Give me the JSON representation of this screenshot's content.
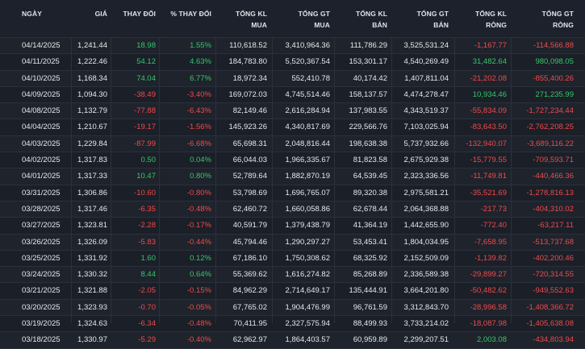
{
  "headers": {
    "date": "NGÀY",
    "price": "GIÁ",
    "change": "THAY ĐỔI",
    "pct_change": "% THAY ĐỔI",
    "buy_vol": [
      "TỔNG KL",
      "MUA"
    ],
    "buy_val": [
      "TỔNG GT",
      "MUA"
    ],
    "sell_vol": [
      "TỔNG KL",
      "BÁN"
    ],
    "sell_val": [
      "TỔNG GT",
      "BÁN"
    ],
    "net_vol": [
      "TỔNG KL",
      "RÒNG"
    ],
    "net_val": [
      "TỔNG GT",
      "RÒNG"
    ]
  },
  "colors": {
    "up": "#39c66a",
    "down": "#ef4b4b",
    "background": "#1a1f28"
  },
  "rows": [
    {
      "date": "04/14/2025",
      "price": "1,241.44",
      "change": "18.98",
      "pct": "1.55%",
      "buy_vol": "110,618.52",
      "buy_val": "3,410,964.36",
      "sell_vol": "111,786.29",
      "sell_val": "3,525,531.24",
      "net_vol": "-1,167.77",
      "net_val": "-114,566.88"
    },
    {
      "date": "04/11/2025",
      "price": "1,222.46",
      "change": "54.12",
      "pct": "4.63%",
      "buy_vol": "184,783.80",
      "buy_val": "5,520,367.54",
      "sell_vol": "153,301.17",
      "sell_val": "4,540,269.49",
      "net_vol": "31,482.64",
      "net_val": "980,098.05"
    },
    {
      "date": "04/10/2025",
      "price": "1,168.34",
      "change": "74.04",
      "pct": "6.77%",
      "buy_vol": "18,972.34",
      "buy_val": "552,410.78",
      "sell_vol": "40,174.42",
      "sell_val": "1,407,811.04",
      "net_vol": "-21,202.08",
      "net_val": "-855,400.26"
    },
    {
      "date": "04/09/2025",
      "price": "1,094.30",
      "change": "-38.49",
      "pct": "-3.40%",
      "buy_vol": "169,072.03",
      "buy_val": "4,745,514.46",
      "sell_vol": "158,137.57",
      "sell_val": "4,474,278.47",
      "net_vol": "10,934.46",
      "net_val": "271,235.99"
    },
    {
      "date": "04/08/2025",
      "price": "1,132.79",
      "change": "-77.88",
      "pct": "-6.43%",
      "buy_vol": "82,149.46",
      "buy_val": "2,616,284.94",
      "sell_vol": "137,983.55",
      "sell_val": "4,343,519.37",
      "net_vol": "-55,834.09",
      "net_val": "-1,727,234.44"
    },
    {
      "date": "04/04/2025",
      "price": "1,210.67",
      "change": "-19.17",
      "pct": "-1.56%",
      "buy_vol": "145,923.26",
      "buy_val": "4,340,817.69",
      "sell_vol": "229,566.76",
      "sell_val": "7,103,025.94",
      "net_vol": "-83,643.50",
      "net_val": "-2,762,208.25"
    },
    {
      "date": "04/03/2025",
      "price": "1,229.84",
      "change": "-87.99",
      "pct": "-6.68%",
      "buy_vol": "65,698.31",
      "buy_val": "2,048,816.44",
      "sell_vol": "198,638.38",
      "sell_val": "5,737,932.66",
      "net_vol": "-132,940.07",
      "net_val": "-3,689,116.22"
    },
    {
      "date": "04/02/2025",
      "price": "1,317.83",
      "change": "0.50",
      "pct": "0.04%",
      "buy_vol": "66,044.03",
      "buy_val": "1,966,335.67",
      "sell_vol": "81,823.58",
      "sell_val": "2,675,929.38",
      "net_vol": "-15,779.55",
      "net_val": "-709,593.71"
    },
    {
      "date": "04/01/2025",
      "price": "1,317.33",
      "change": "10.47",
      "pct": "0.80%",
      "buy_vol": "52,789.64",
      "buy_val": "1,882,870.19",
      "sell_vol": "64,539.45",
      "sell_val": "2,323,336.56",
      "net_vol": "-11,749.81",
      "net_val": "-440,466.36"
    },
    {
      "date": "03/31/2025",
      "price": "1,306.86",
      "change": "-10.60",
      "pct": "-0.80%",
      "buy_vol": "53,798.69",
      "buy_val": "1,696,765.07",
      "sell_vol": "89,320.38",
      "sell_val": "2,975,581.21",
      "net_vol": "-35,521.69",
      "net_val": "-1,278,816.13"
    },
    {
      "date": "03/28/2025",
      "price": "1,317.46",
      "change": "-6.35",
      "pct": "-0.48%",
      "buy_vol": "62,460.72",
      "buy_val": "1,660,058.86",
      "sell_vol": "62,678.44",
      "sell_val": "2,064,368.88",
      "net_vol": "-217.73",
      "net_val": "-404,310.02"
    },
    {
      "date": "03/27/2025",
      "price": "1,323.81",
      "change": "-2.28",
      "pct": "-0.17%",
      "buy_vol": "40,591.79",
      "buy_val": "1,379,438.79",
      "sell_vol": "41,364.19",
      "sell_val": "1,442,655.90",
      "net_vol": "-772.40",
      "net_val": "-63,217.11"
    },
    {
      "date": "03/26/2025",
      "price": "1,326.09",
      "change": "-5.83",
      "pct": "-0.44%",
      "buy_vol": "45,794.46",
      "buy_val": "1,290,297.27",
      "sell_vol": "53,453.41",
      "sell_val": "1,804,034.95",
      "net_vol": "-7,658.95",
      "net_val": "-513,737.68"
    },
    {
      "date": "03/25/2025",
      "price": "1,331.92",
      "change": "1.60",
      "pct": "0.12%",
      "buy_vol": "67,186.10",
      "buy_val": "1,750,308.62",
      "sell_vol": "68,325.92",
      "sell_val": "2,152,509.09",
      "net_vol": "-1,139.82",
      "net_val": "-402,200.46"
    },
    {
      "date": "03/24/2025",
      "price": "1,330.32",
      "change": "8.44",
      "pct": "0.64%",
      "buy_vol": "55,369.62",
      "buy_val": "1,616,274.82",
      "sell_vol": "85,268.89",
      "sell_val": "2,336,589.38",
      "net_vol": "-29,899.27",
      "net_val": "-720,314.55"
    },
    {
      "date": "03/21/2025",
      "price": "1,321.88",
      "change": "-2.05",
      "pct": "-0.15%",
      "buy_vol": "84,962.29",
      "buy_val": "2,714,649.17",
      "sell_vol": "135,444.91",
      "sell_val": "3,664,201.80",
      "net_vol": "-50,482.62",
      "net_val": "-949,552.63"
    },
    {
      "date": "03/20/2025",
      "price": "1,323.93",
      "change": "-0.70",
      "pct": "-0.05%",
      "buy_vol": "67,765.02",
      "buy_val": "1,904,476.99",
      "sell_vol": "96,761.59",
      "sell_val": "3,312,843.70",
      "net_vol": "-28,996.58",
      "net_val": "-1,408,366.72"
    },
    {
      "date": "03/19/2025",
      "price": "1,324.63",
      "change": "-6.34",
      "pct": "-0.48%",
      "buy_vol": "70,411.95",
      "buy_val": "2,327,575.94",
      "sell_vol": "88,499.93",
      "sell_val": "3,733,214.02",
      "net_vol": "-18,087.98",
      "net_val": "-1,405,638.08"
    },
    {
      "date": "03/18/2025",
      "price": "1,330.97",
      "change": "-5.29",
      "pct": "-0.40%",
      "buy_vol": "62,962.97",
      "buy_val": "1,864,403.57",
      "sell_vol": "60,959.89",
      "sell_val": "2,299,207.51",
      "net_vol": "2,003.08",
      "net_val": "-434,803.94"
    }
  ]
}
